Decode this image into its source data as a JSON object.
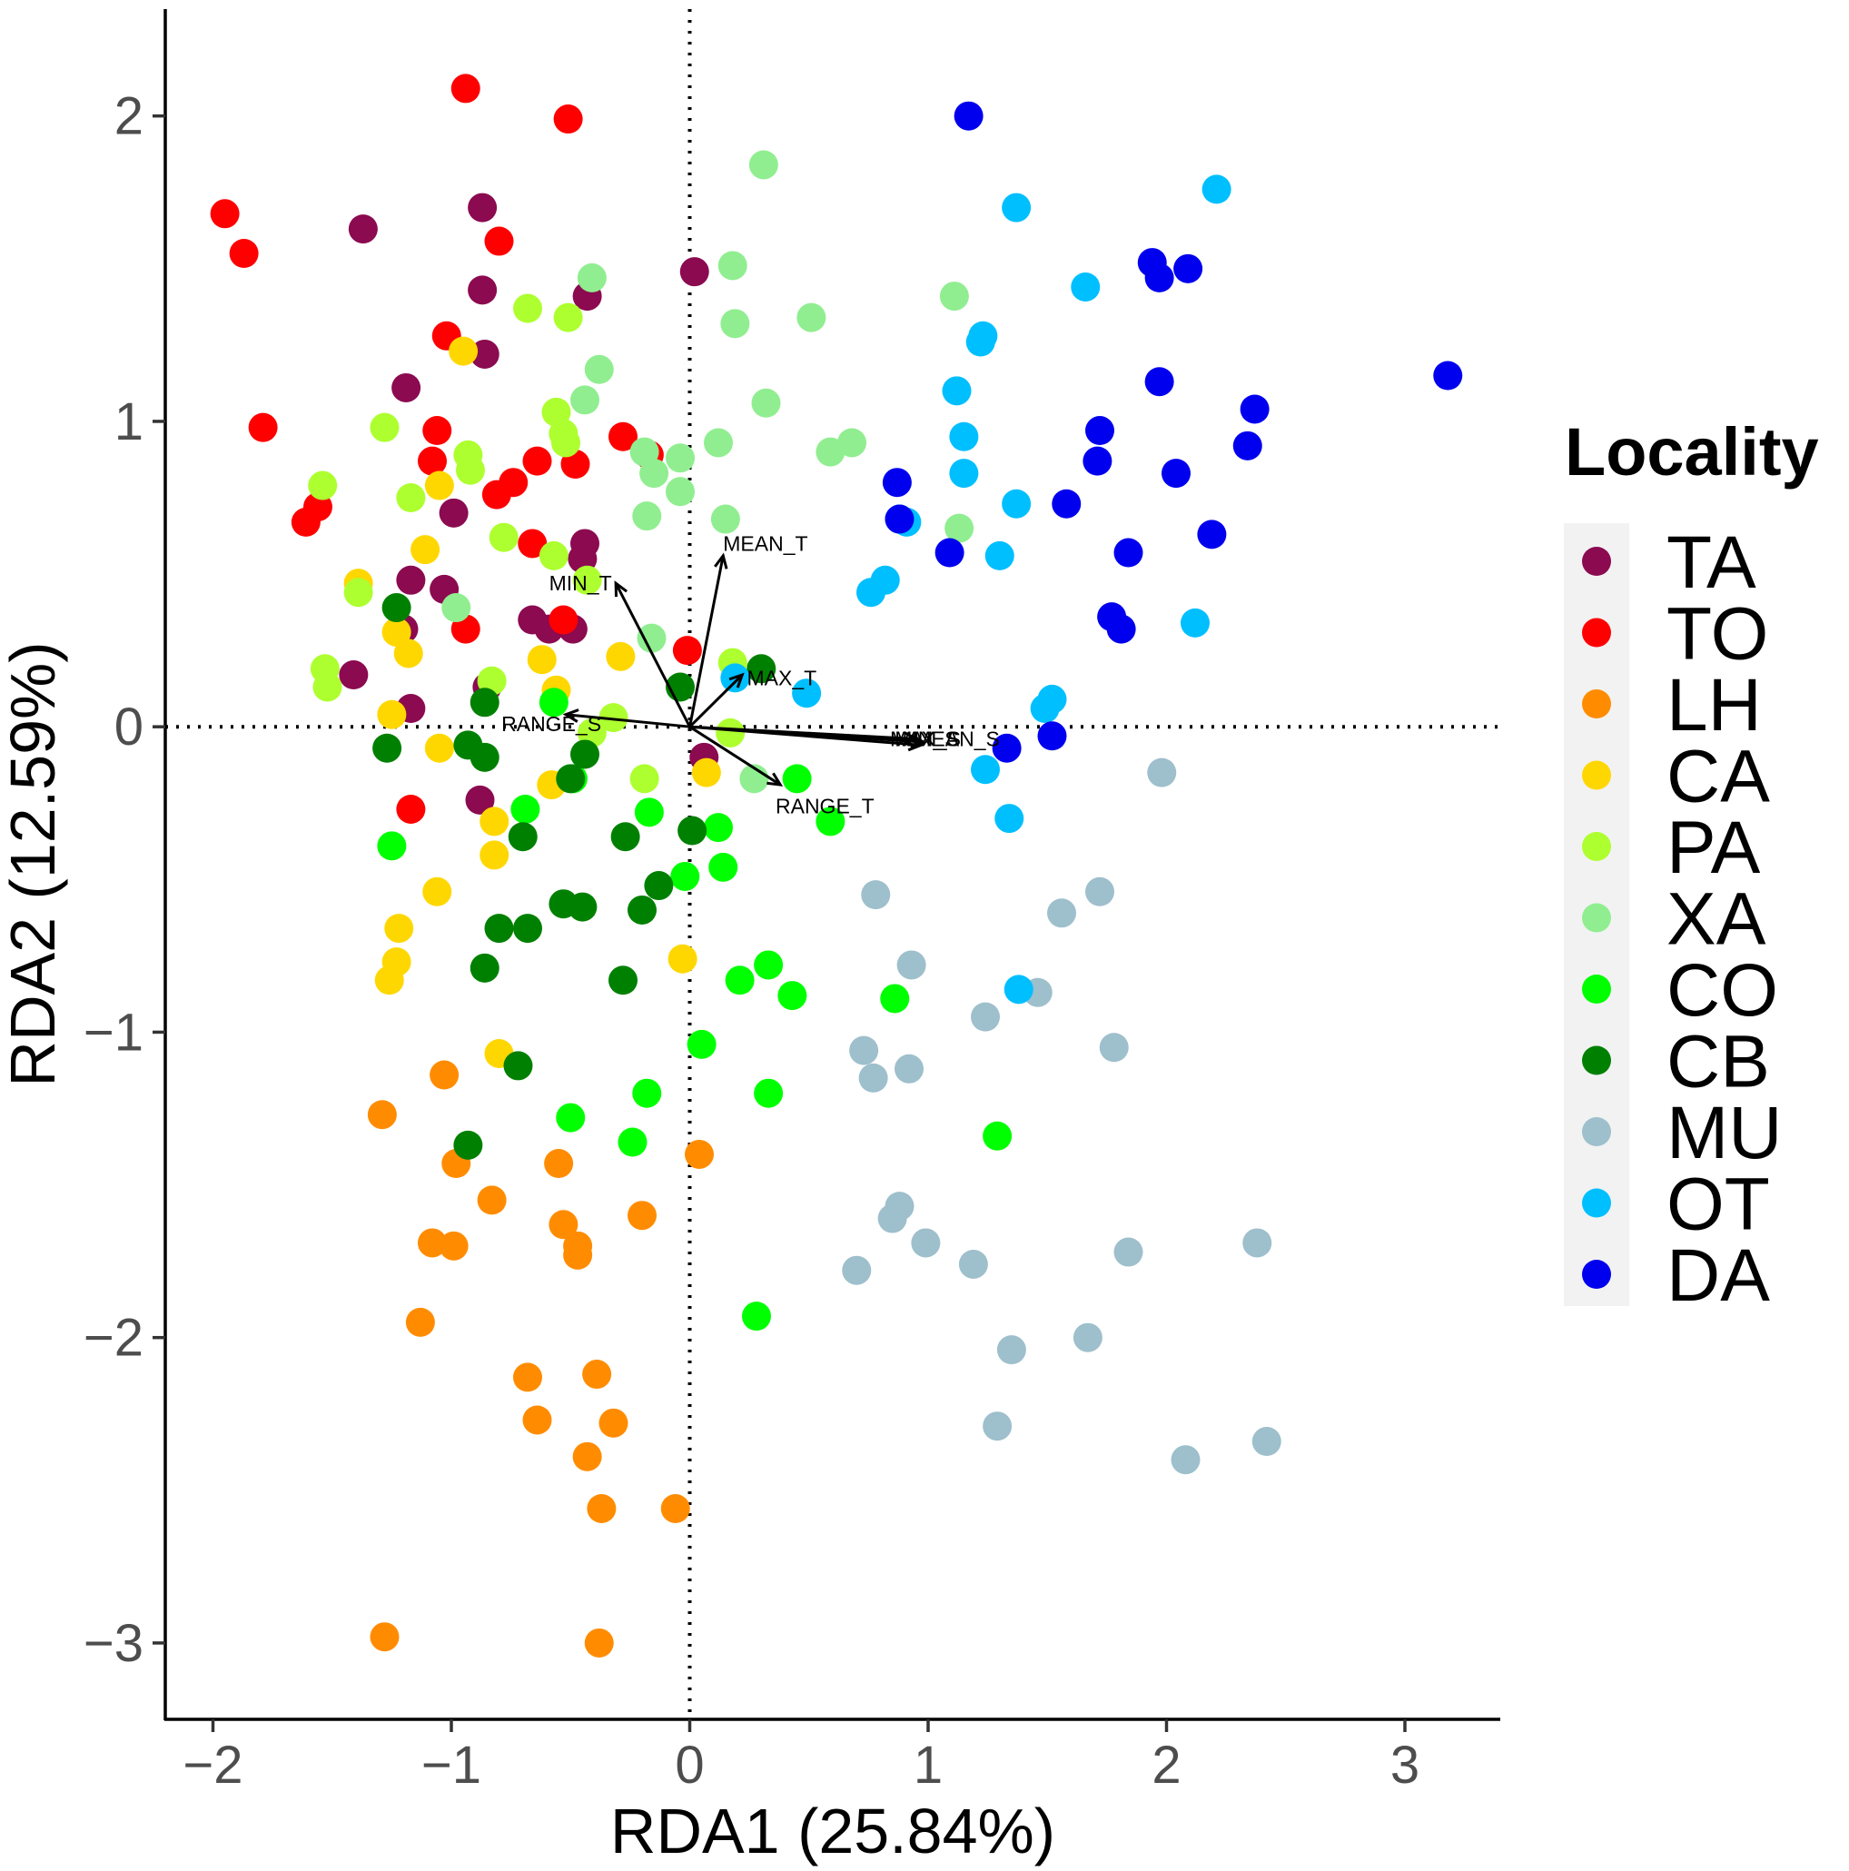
{
  "chart_data": {
    "type": "scatter",
    "xlabel": "RDA1 (25.84%)",
    "ylabel": "RDA2 (12.59%)",
    "xlim": [
      -2.2,
      3.4
    ],
    "ylim": [
      -3.25,
      2.35
    ],
    "xticks": [
      -2,
      -1,
      0,
      1,
      2,
      3
    ],
    "yticks": [
      -3,
      -2,
      -1,
      0,
      1,
      2
    ],
    "xtick_labels": [
      "−2",
      "−1",
      "0",
      "1",
      "2",
      "3"
    ],
    "ytick_labels": [
      "−3",
      "−2",
      "−1",
      "0",
      "1",
      "2"
    ],
    "reference_lines": {
      "x": 0,
      "y": 0,
      "style": "dotted"
    },
    "legend": {
      "title": "Locality",
      "position": "right"
    },
    "series": [
      {
        "name": "TA",
        "color": "#8B0A50",
        "points": [
          [
            -1.37,
            1.63
          ],
          [
            -0.87,
            1.7
          ],
          [
            -0.87,
            1.43
          ],
          [
            -0.43,
            1.41
          ],
          [
            0.02,
            1.49
          ],
          [
            -0.86,
            1.22
          ],
          [
            -1.19,
            1.11
          ],
          [
            -0.99,
            0.7
          ],
          [
            -0.44,
            0.6
          ],
          [
            -0.45,
            0.55
          ],
          [
            -1.17,
            0.48
          ],
          [
            -1.03,
            0.45
          ],
          [
            -0.66,
            0.35
          ],
          [
            -0.59,
            0.32
          ],
          [
            -0.49,
            0.32
          ],
          [
            -1.2,
            0.32
          ],
          [
            -1.41,
            0.17
          ],
          [
            -0.85,
            0.13
          ],
          [
            -1.17,
            0.06
          ],
          [
            0.06,
            -0.1
          ],
          [
            -0.88,
            -0.24
          ]
        ]
      },
      {
        "name": "TO",
        "color": "#FF0000",
        "points": [
          [
            -0.94,
            2.09
          ],
          [
            -0.51,
            1.99
          ],
          [
            -1.95,
            1.68
          ],
          [
            -1.87,
            1.55
          ],
          [
            -0.8,
            1.59
          ],
          [
            -1.02,
            1.28
          ],
          [
            -1.79,
            0.98
          ],
          [
            -1.06,
            0.97
          ],
          [
            -0.28,
            0.95
          ],
          [
            -1.08,
            0.87
          ],
          [
            -0.64,
            0.87
          ],
          [
            -0.48,
            0.86
          ],
          [
            -0.74,
            0.8
          ],
          [
            -0.81,
            0.76
          ],
          [
            -1.56,
            0.72
          ],
          [
            -1.61,
            0.67
          ],
          [
            -0.66,
            0.6
          ],
          [
            -0.17,
            0.89
          ],
          [
            -0.94,
            0.32
          ],
          [
            -0.53,
            0.35
          ],
          [
            -0.01,
            0.25
          ],
          [
            -1.17,
            -0.27
          ]
        ]
      },
      {
        "name": "LH",
        "color": "#FF8C00",
        "points": [
          [
            -1.29,
            -1.27
          ],
          [
            -1.03,
            -1.14
          ],
          [
            -0.98,
            -1.43
          ],
          [
            -0.83,
            -1.55
          ],
          [
            -0.55,
            -1.43
          ],
          [
            -0.53,
            -1.63
          ],
          [
            -0.47,
            -1.7
          ],
          [
            -0.47,
            -1.73
          ],
          [
            -1.08,
            -1.69
          ],
          [
            -0.99,
            -1.7
          ],
          [
            -0.2,
            -1.6
          ],
          [
            0.04,
            -1.4
          ],
          [
            -1.13,
            -1.95
          ],
          [
            -0.68,
            -2.13
          ],
          [
            -0.64,
            -2.27
          ],
          [
            -0.39,
            -2.12
          ],
          [
            -0.32,
            -2.28
          ],
          [
            -0.43,
            -2.39
          ],
          [
            -0.37,
            -2.56
          ],
          [
            -0.06,
            -2.56
          ],
          [
            -1.28,
            -2.98
          ],
          [
            -0.38,
            -3.0
          ]
        ]
      },
      {
        "name": "CA",
        "color": "#FFD700",
        "points": [
          [
            -0.95,
            1.23
          ],
          [
            -1.05,
            0.79
          ],
          [
            -1.11,
            0.58
          ],
          [
            -1.39,
            0.47
          ],
          [
            -1.23,
            0.31
          ],
          [
            -1.18,
            0.24
          ],
          [
            -0.62,
            0.22
          ],
          [
            -0.29,
            0.23
          ],
          [
            -1.25,
            0.04
          ],
          [
            -0.56,
            0.12
          ],
          [
            -1.05,
            -0.07
          ],
          [
            -0.58,
            -0.19
          ],
          [
            -0.82,
            -0.31
          ],
          [
            -0.82,
            -0.42
          ],
          [
            -1.06,
            -0.54
          ],
          [
            -1.22,
            -0.66
          ],
          [
            -1.23,
            -0.77
          ],
          [
            -1.26,
            -0.83
          ],
          [
            -0.8,
            -1.07
          ],
          [
            -0.03,
            -0.76
          ],
          [
            0.07,
            -0.15
          ]
        ]
      },
      {
        "name": "PA",
        "color": "#ADFF2F",
        "points": [
          [
            -0.68,
            1.37
          ],
          [
            -0.51,
            1.34
          ],
          [
            -1.28,
            0.98
          ],
          [
            -0.56,
            1.03
          ],
          [
            -0.53,
            0.96
          ],
          [
            -0.52,
            0.93
          ],
          [
            -0.93,
            0.89
          ],
          [
            -0.92,
            0.84
          ],
          [
            -1.54,
            0.79
          ],
          [
            -1.17,
            0.75
          ],
          [
            -0.78,
            0.62
          ],
          [
            -0.57,
            0.56
          ],
          [
            -0.43,
            0.48
          ],
          [
            -1.39,
            0.44
          ],
          [
            -1.53,
            0.19
          ],
          [
            -1.52,
            0.13
          ],
          [
            -0.83,
            0.15
          ],
          [
            -0.32,
            0.03
          ],
          [
            -0.41,
            -0.02
          ],
          [
            0.18,
            0.21
          ],
          [
            0.17,
            -0.02
          ],
          [
            -0.19,
            -0.17
          ]
        ]
      },
      {
        "name": "XA",
        "color": "#90EE90",
        "points": [
          [
            0.31,
            1.84
          ],
          [
            -0.41,
            1.47
          ],
          [
            0.18,
            1.51
          ],
          [
            0.19,
            1.32
          ],
          [
            0.51,
            1.34
          ],
          [
            1.11,
            1.41
          ],
          [
            -0.38,
            1.17
          ],
          [
            -0.44,
            1.07
          ],
          [
            0.32,
            1.06
          ],
          [
            -0.19,
            0.9
          ],
          [
            -0.15,
            0.83
          ],
          [
            -0.04,
            0.88
          ],
          [
            0.12,
            0.93
          ],
          [
            0.59,
            0.9
          ],
          [
            0.68,
            0.93
          ],
          [
            -0.04,
            0.77
          ],
          [
            -0.18,
            0.69
          ],
          [
            0.15,
            0.68
          ],
          [
            1.13,
            0.65
          ],
          [
            -0.98,
            0.39
          ],
          [
            -0.16,
            0.29
          ],
          [
            0.27,
            -0.17
          ]
        ]
      },
      {
        "name": "CO",
        "color": "#00FF00",
        "points": [
          [
            -0.57,
            0.08
          ],
          [
            -1.25,
            -0.39
          ],
          [
            -0.69,
            -0.27
          ],
          [
            -0.49,
            -0.17
          ],
          [
            -0.17,
            -0.28
          ],
          [
            0.12,
            -0.33
          ],
          [
            -0.02,
            -0.49
          ],
          [
            0.14,
            -0.46
          ],
          [
            0.45,
            -0.17
          ],
          [
            0.59,
            -0.31
          ],
          [
            0.21,
            -0.83
          ],
          [
            0.33,
            -0.78
          ],
          [
            0.43,
            -0.88
          ],
          [
            0.86,
            -0.89
          ],
          [
            0.05,
            -1.04
          ],
          [
            -0.5,
            -1.28
          ],
          [
            -0.18,
            -1.2
          ],
          [
            -0.24,
            -1.36
          ],
          [
            0.33,
            -1.2
          ],
          [
            1.29,
            -1.34
          ],
          [
            0.28,
            -1.93
          ]
        ]
      },
      {
        "name": "CB",
        "color": "#008000",
        "points": [
          [
            -1.23,
            0.39
          ],
          [
            -0.86,
            0.08
          ],
          [
            0.3,
            0.19
          ],
          [
            -0.04,
            0.13
          ],
          [
            -1.27,
            -0.07
          ],
          [
            -0.93,
            -0.06
          ],
          [
            -0.86,
            -0.1
          ],
          [
            -0.44,
            -0.09
          ],
          [
            -0.5,
            -0.17
          ],
          [
            -0.7,
            -0.36
          ],
          [
            -0.27,
            -0.36
          ],
          [
            0.01,
            -0.34
          ],
          [
            -0.13,
            -0.52
          ],
          [
            -0.53,
            -0.58
          ],
          [
            -0.45,
            -0.59
          ],
          [
            -0.2,
            -0.6
          ],
          [
            -0.8,
            -0.66
          ],
          [
            -0.68,
            -0.66
          ],
          [
            -0.86,
            -0.79
          ],
          [
            -0.28,
            -0.83
          ],
          [
            -0.72,
            -1.11
          ],
          [
            -0.93,
            -1.37
          ]
        ]
      },
      {
        "name": "MU",
        "color": "#9EBFCC",
        "points": [
          [
            1.98,
            -0.15
          ],
          [
            0.78,
            -0.55
          ],
          [
            1.72,
            -0.54
          ],
          [
            1.56,
            -0.61
          ],
          [
            0.93,
            -0.78
          ],
          [
            1.46,
            -0.87
          ],
          [
            1.24,
            -0.95
          ],
          [
            1.78,
            -1.05
          ],
          [
            0.73,
            -1.06
          ],
          [
            0.77,
            -1.15
          ],
          [
            0.92,
            -1.12
          ],
          [
            0.88,
            -1.57
          ],
          [
            0.85,
            -1.61
          ],
          [
            0.99,
            -1.69
          ],
          [
            1.19,
            -1.76
          ],
          [
            0.7,
            -1.78
          ],
          [
            1.84,
            -1.72
          ],
          [
            2.38,
            -1.69
          ],
          [
            1.67,
            -2.0
          ],
          [
            1.35,
            -2.04
          ],
          [
            1.29,
            -2.29
          ],
          [
            2.08,
            -2.4
          ],
          [
            2.42,
            -2.34
          ]
        ]
      },
      {
        "name": "OT",
        "color": "#00BFFF",
        "points": [
          [
            2.21,
            1.76
          ],
          [
            1.37,
            1.7
          ],
          [
            1.66,
            1.44
          ],
          [
            1.23,
            1.28
          ],
          [
            1.22,
            1.26
          ],
          [
            1.12,
            1.1
          ],
          [
            1.15,
            0.95
          ],
          [
            1.15,
            0.83
          ],
          [
            1.37,
            0.73
          ],
          [
            0.88,
            0.68
          ],
          [
            0.91,
            0.67
          ],
          [
            1.3,
            0.56
          ],
          [
            0.82,
            0.48
          ],
          [
            0.76,
            0.44
          ],
          [
            2.12,
            0.34
          ],
          [
            0.19,
            0.16
          ],
          [
            0.49,
            0.11
          ],
          [
            1.49,
            0.06
          ],
          [
            1.52,
            0.09
          ],
          [
            1.24,
            -0.14
          ],
          [
            1.34,
            -0.3
          ],
          [
            1.38,
            -0.86
          ]
        ]
      },
      {
        "name": "DA",
        "color": "#0000EE",
        "points": [
          [
            1.17,
            2.0
          ],
          [
            1.94,
            1.52
          ],
          [
            1.97,
            1.47
          ],
          [
            2.09,
            1.5
          ],
          [
            3.18,
            1.15
          ],
          [
            1.97,
            1.13
          ],
          [
            2.37,
            1.04
          ],
          [
            1.72,
            0.97
          ],
          [
            2.34,
            0.92
          ],
          [
            1.71,
            0.87
          ],
          [
            2.04,
            0.83
          ],
          [
            0.87,
            0.8
          ],
          [
            1.58,
            0.73
          ],
          [
            0.88,
            0.68
          ],
          [
            2.19,
            0.63
          ],
          [
            1.09,
            0.57
          ],
          [
            1.84,
            0.57
          ],
          [
            1.77,
            0.36
          ],
          [
            1.81,
            0.32
          ],
          [
            1.33,
            -0.07
          ],
          [
            1.52,
            -0.03
          ]
        ]
      }
    ],
    "biplot_arrows": [
      {
        "label": "MEAN_T",
        "x": 0.14,
        "y": 0.56
      },
      {
        "label": "MIN_T",
        "x": -0.31,
        "y": 0.47
      },
      {
        "label": "MAX_T",
        "x": 0.22,
        "y": 0.17
      },
      {
        "label": "RANGE_S",
        "x": -0.52,
        "y": 0.04
      },
      {
        "label": "MAX_S",
        "x": 0.98,
        "y": -0.05
      },
      {
        "label": "MIN_S",
        "x": 0.95,
        "y": -0.04
      },
      {
        "label": "MEAN_S",
        "x": 0.97,
        "y": -0.06
      },
      {
        "label": "RANGE_T",
        "x": 0.38,
        "y": -0.19
      }
    ],
    "arrow_label_anchors": [
      {
        "label": "MEAN_T",
        "x": 0.14,
        "y": 0.6
      },
      {
        "label": "MIN_T",
        "x": -0.59,
        "y": 0.47
      },
      {
        "label": "MAX_T",
        "x": 0.24,
        "y": 0.16
      },
      {
        "label": "RANGE_S",
        "x": -0.79,
        "y": 0.01
      },
      {
        "label": "MAX_S",
        "x": 0.84,
        "y": -0.04
      },
      {
        "label": "MIN_S",
        "x": 0.86,
        "y": -0.04
      },
      {
        "label": "MEAN_S",
        "x": 0.94,
        "y": -0.04
      },
      {
        "label": "RANGE_T",
        "x": 0.36,
        "y": -0.26
      }
    ]
  }
}
